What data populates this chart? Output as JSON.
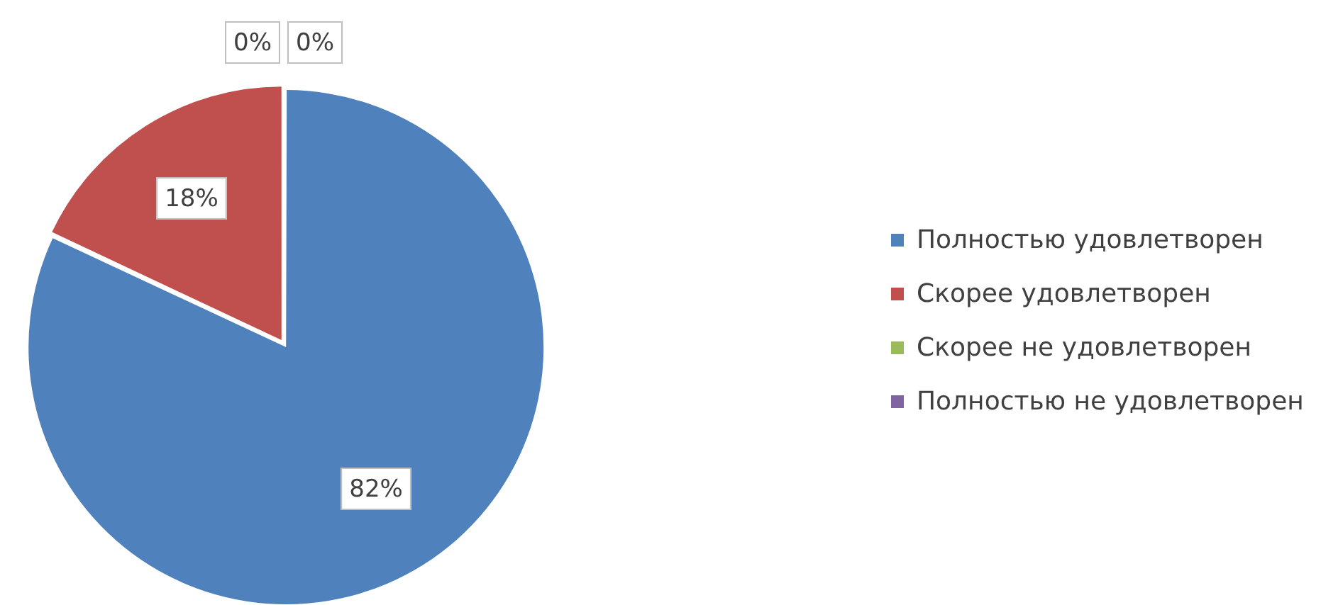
{
  "chart_data": {
    "type": "pie",
    "categories": [
      "Полностью удовлетворен",
      "Скорее удовлетворен",
      "Скорее не удовлетворен",
      "Полностью не удовлетворен"
    ],
    "values": [
      82,
      18,
      0,
      0
    ],
    "colors": [
      "#4f81bd",
      "#c0504d",
      "#9bbb59",
      "#8064a2"
    ],
    "value_labels": [
      "82%",
      "18%",
      "0%",
      "0%"
    ],
    "legend": "right"
  }
}
